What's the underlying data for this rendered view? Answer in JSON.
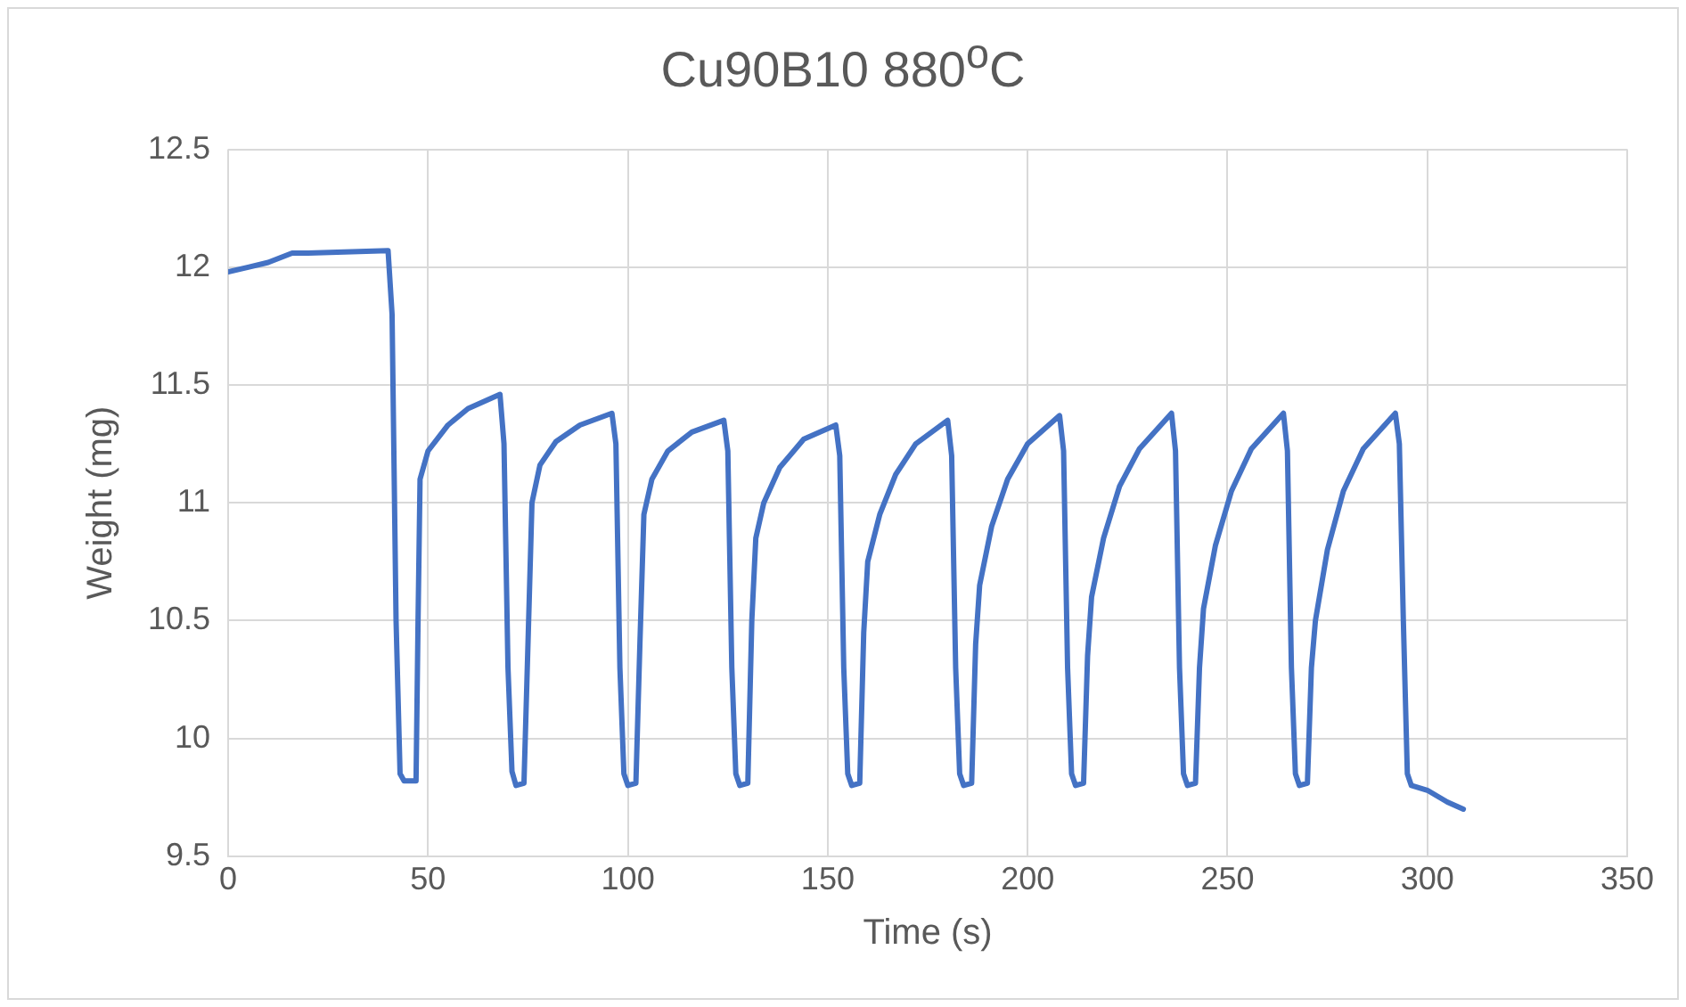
{
  "chart_data": {
    "type": "line",
    "title": "Cu90B10 880$^{o}$C",
    "xlabel": "Time (s)",
    "ylabel": "Weight (mg)",
    "color": "#4472c4",
    "grid": true,
    "marker": "none",
    "line_style": "solid",
    "xlim": [
      0,
      350
    ],
    "xticks": [
      0,
      50,
      100,
      150,
      200,
      250,
      300,
      350
    ],
    "ylim": [
      9.5,
      12.5
    ],
    "yticks": [
      9.5,
      10,
      10.5,
      11,
      11.5,
      12,
      12.5
    ],
    "x": [
      0,
      5,
      10,
      16,
      20,
      40,
      41,
      42,
      43,
      44,
      47,
      47.5,
      48,
      50,
      55,
      60,
      68,
      69,
      70,
      71,
      72,
      74,
      75,
      76,
      78,
      82,
      88,
      96,
      97,
      98,
      99,
      100,
      102,
      103,
      104,
      106,
      110,
      116,
      124,
      125,
      126,
      127,
      128,
      130,
      131,
      132,
      134,
      138,
      144,
      152,
      153,
      154,
      155,
      156,
      158,
      159,
      160,
      163,
      167,
      172,
      180,
      181,
      182,
      183,
      184,
      186,
      187,
      188,
      191,
      195,
      200,
      208,
      209,
      210,
      211,
      212,
      214,
      215,
      216,
      219,
      223,
      228,
      236,
      237,
      238,
      239,
      240,
      242,
      243,
      244,
      247,
      251,
      256,
      264,
      265,
      266,
      267,
      268,
      270,
      271,
      272,
      275,
      279,
      284,
      292,
      293,
      294,
      295,
      296,
      300,
      305,
      309
    ],
    "values": [
      11.98,
      12.0,
      12.02,
      12.06,
      12.06,
      12.07,
      11.8,
      10.5,
      9.85,
      9.82,
      9.82,
      10.5,
      11.1,
      11.22,
      11.33,
      11.4,
      11.46,
      11.25,
      10.3,
      9.86,
      9.8,
      9.81,
      10.4,
      11.0,
      11.16,
      11.26,
      11.33,
      11.38,
      11.25,
      10.3,
      9.85,
      9.8,
      9.81,
      10.4,
      10.95,
      11.1,
      11.22,
      11.3,
      11.35,
      11.22,
      10.3,
      9.85,
      9.8,
      9.81,
      10.5,
      10.85,
      11.0,
      11.15,
      11.27,
      11.33,
      11.2,
      10.3,
      9.85,
      9.8,
      9.81,
      10.45,
      10.75,
      10.95,
      11.12,
      11.25,
      11.35,
      11.2,
      10.3,
      9.85,
      9.8,
      9.81,
      10.4,
      10.65,
      10.9,
      11.1,
      11.25,
      11.37,
      11.22,
      10.3,
      9.85,
      9.8,
      9.81,
      10.35,
      10.6,
      10.85,
      11.07,
      11.23,
      11.38,
      11.22,
      10.3,
      9.85,
      9.8,
      9.81,
      10.3,
      10.55,
      10.82,
      11.05,
      11.23,
      11.38,
      11.22,
      10.3,
      9.85,
      9.8,
      9.81,
      10.3,
      10.5,
      10.8,
      11.05,
      11.23,
      11.38,
      11.25,
      10.5,
      9.85,
      9.8,
      9.78,
      9.73,
      9.7
    ]
  }
}
